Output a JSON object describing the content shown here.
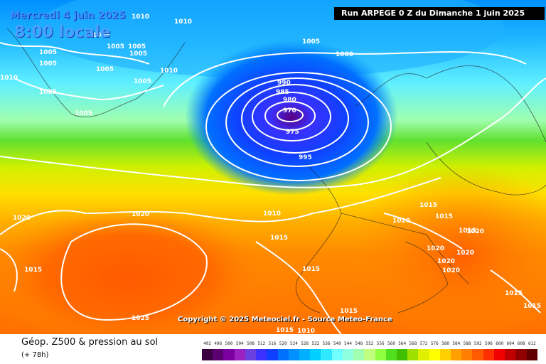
{
  "overlay": {
    "date": "Mercredi 4 juin 2025",
    "time": "8:00 locale",
    "run": "Run ARPEGE 0 Z du Dimanche 1 juin 2025",
    "copyright": "Copyright © 2025 Meteociel.fr - Source Meteo-France"
  },
  "footer": {
    "title": "Géop. Z500 & pression au sol",
    "lead": "(+ 78h)"
  },
  "isobar_labels": [
    "1010",
    "1005",
    "1010",
    "1005",
    "1005",
    "1005",
    "1005",
    "1010",
    "1005",
    "1005",
    "1005",
    "1010",
    "1005",
    "1005",
    "1005",
    "1000",
    "990",
    "985",
    "980",
    "970",
    "975",
    "995",
    "1020",
    "1020",
    "1010",
    "1015",
    "1015",
    "1015",
    "1020",
    "1015",
    "1020",
    "1020",
    "1020",
    "1020",
    "1020",
    "1015",
    "1025",
    "1015",
    "1015",
    "1015",
    "1015",
    "1010",
    "1015"
  ],
  "legend": {
    "labels": [
      "492",
      "496",
      "500",
      "504",
      "508",
      "512",
      "516",
      "520",
      "524",
      "528",
      "532",
      "536",
      "540",
      "544",
      "548",
      "552",
      "556",
      "560",
      "564",
      "568",
      "572",
      "576",
      "580",
      "584",
      "588",
      "592",
      "596",
      "600",
      "604",
      "608",
      "612"
    ],
    "colors": [
      "#3a0040",
      "#5a0070",
      "#7a00a0",
      "#9a20c0",
      "#6a40e0",
      "#3a30ff",
      "#1040ff",
      "#0070ff",
      "#0090ff",
      "#00b0ff",
      "#00d0ff",
      "#30e8ff",
      "#70ffff",
      "#90ffe0",
      "#a0ffb0",
      "#c0ff80",
      "#90ff40",
      "#50e020",
      "#40c000",
      "#a0e000",
      "#e0f000",
      "#ffff00",
      "#ffd000",
      "#ffa000",
      "#ff8000",
      "#ff5a00",
      "#ff3000",
      "#f00000",
      "#c00000",
      "#900000",
      "#600000"
    ]
  }
}
